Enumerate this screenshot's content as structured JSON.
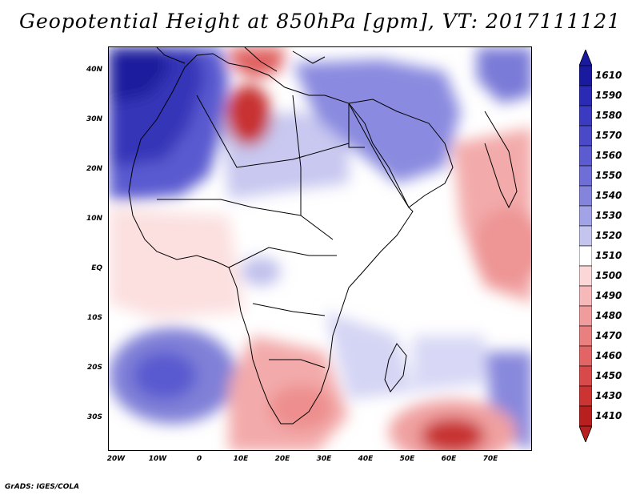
{
  "title": "Geopotential Height at 850hPa [gpm], VT: 2017111121",
  "credit": "GrADS: IGES/COLA",
  "lat_ticks": [
    "40N",
    "30N",
    "20N",
    "10N",
    "EQ",
    "10S",
    "20S",
    "30S"
  ],
  "lon_ticks": [
    "20W",
    "10W",
    "0",
    "10E",
    "20E",
    "30E",
    "40E",
    "50E",
    "60E",
    "70E"
  ],
  "colorbar": {
    "levels": [
      "1610",
      "1590",
      "1580",
      "1570",
      "1560",
      "1550",
      "1540",
      "1530",
      "1520",
      "1510",
      "1500",
      "1490",
      "1480",
      "1470",
      "1460",
      "1450",
      "1430",
      "1410"
    ],
    "colors": [
      "#1a1aa0",
      "#2a2ab5",
      "#3b3bc2",
      "#4a4ac9",
      "#5c5cd0",
      "#6e6ed6",
      "#8484dd",
      "#a2a2e6",
      "#c4c4ef",
      "#ffffff",
      "#fbd7d7",
      "#f6b8b8",
      "#f19c9c",
      "#ea7f7f",
      "#e26464",
      "#d84a4a",
      "#cc3333",
      "#b82020"
    ]
  },
  "colors": {
    "strong_high": "#1e1e9e",
    "high": "#7a7ad8",
    "neutral": "#ffffff",
    "low": "#f2a2a2",
    "strong_low": "#c02525"
  }
}
